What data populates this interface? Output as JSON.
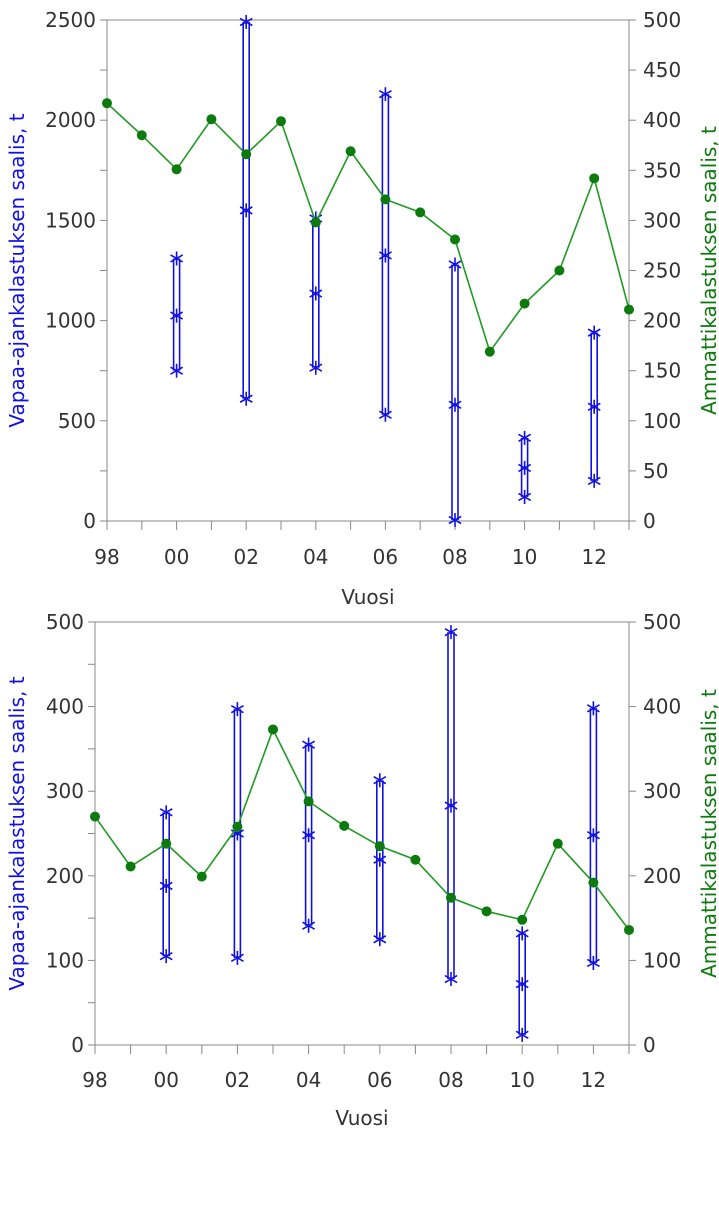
{
  "chart_data": [
    {
      "type": "scatter",
      "xlabel": "Vuosi",
      "ylabel_left": "Vapaa-ajankalastuksen saalis, t",
      "ylabel_right": "Ammattikalastuksen saalis, t",
      "x_ticks": [
        "98",
        "00",
        "02",
        "04",
        "06",
        "08",
        "10",
        "12"
      ],
      "y_left_ticks": [
        0,
        500,
        1000,
        1500,
        2000,
        2500
      ],
      "y_right_ticks": [
        0,
        50,
        100,
        150,
        200,
        250,
        300,
        350,
        400,
        450,
        500
      ],
      "ylim_left": [
        0,
        2500
      ],
      "ylim_right": [
        0,
        500
      ],
      "xlim": [
        1998,
        2013
      ],
      "grid": false,
      "colors": {
        "left": "#1010e0",
        "right": "#0d7a0d"
      },
      "series": [
        {
          "name": "Vapaa-ajankalastuksen saalis, t",
          "kind": "range",
          "axis": "left",
          "points": [
            {
              "x": 2000,
              "low": 750,
              "mid": 1025,
              "high": 1310
            },
            {
              "x": 2002,
              "low": 610,
              "mid": 1550,
              "high": 2490
            },
            {
              "x": 2004,
              "low": 765,
              "mid": 1135,
              "high": 1510
            },
            {
              "x": 2006,
              "low": 530,
              "mid": 1325,
              "high": 2130
            },
            {
              "x": 2008,
              "low": 5,
              "mid": 580,
              "high": 1280
            },
            {
              "x": 2010,
              "low": 120,
              "mid": 265,
              "high": 415
            },
            {
              "x": 2012,
              "low": 200,
              "mid": 570,
              "high": 940
            }
          ]
        },
        {
          "name": "Ammattikalastuksen saalis, t",
          "kind": "line",
          "axis": "right",
          "x": [
            1998,
            1999,
            2000,
            2001,
            2002,
            2003,
            2004,
            2005,
            2006,
            2007,
            2008,
            2009,
            2010,
            2011,
            2012,
            2013
          ],
          "values": [
            417,
            385,
            351,
            401,
            366,
            399,
            298,
            369,
            321,
            308,
            281,
            169,
            217,
            250,
            342,
            211
          ]
        }
      ]
    },
    {
      "type": "scatter",
      "xlabel": "Vuosi",
      "ylabel_left": "Vapaa-ajankalastuksen saalis, t",
      "ylabel_right": "Ammattikalastuksen saalis, t",
      "x_ticks": [
        "98",
        "00",
        "02",
        "04",
        "06",
        "08",
        "10",
        "12"
      ],
      "y_left_ticks": [
        0,
        100,
        200,
        300,
        400,
        500
      ],
      "y_right_ticks": [
        0,
        100,
        200,
        300,
        400,
        500
      ],
      "ylim_left": [
        0,
        500
      ],
      "ylim_right": [
        0,
        500
      ],
      "xlim": [
        1998,
        2013
      ],
      "grid": false,
      "colors": {
        "left": "#1010e0",
        "right": "#0d7a0d"
      },
      "series": [
        {
          "name": "Vapaa-ajankalastuksen saalis, t",
          "kind": "range",
          "axis": "left",
          "points": [
            {
              "x": 2000,
              "low": 105,
              "mid": 188,
              "high": 275
            },
            {
              "x": 2002,
              "low": 103,
              "mid": 250,
              "high": 397
            },
            {
              "x": 2004,
              "low": 141,
              "mid": 248,
              "high": 355
            },
            {
              "x": 2006,
              "low": 125,
              "mid": 219,
              "high": 313
            },
            {
              "x": 2008,
              "low": 78,
              "mid": 283,
              "high": 488
            },
            {
              "x": 2010,
              "low": 12,
              "mid": 72,
              "high": 132
            },
            {
              "x": 2012,
              "low": 97,
              "mid": 248,
              "high": 398
            }
          ]
        },
        {
          "name": "Ammattikalastuksen saalis, t",
          "kind": "line",
          "axis": "right",
          "x": [
            1998,
            1999,
            2000,
            2001,
            2002,
            2003,
            2004,
            2005,
            2006,
            2007,
            2008,
            2009,
            2010,
            2011,
            2012,
            2013
          ],
          "values": [
            270,
            211,
            238,
            199,
            258,
            373,
            288,
            259,
            235,
            219,
            174,
            158,
            148,
            238,
            192,
            136
          ]
        }
      ]
    }
  ]
}
